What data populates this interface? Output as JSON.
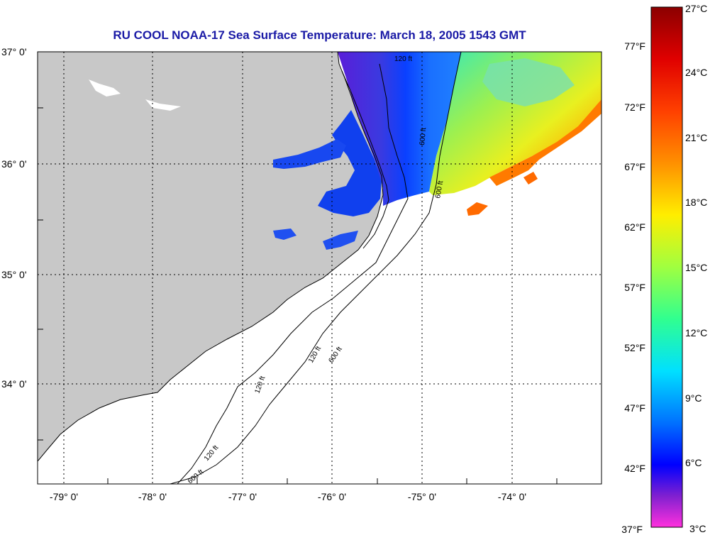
{
  "title": "RU COOL  NOAA-17  Sea Surface Temperature:  March 18, 2005 1543 GMT",
  "map": {
    "lat_labels": [
      "37° 0'",
      "36° 0'",
      "35° 0'",
      "34° 0'"
    ],
    "lon_labels": [
      "-79° 0'",
      "-78° 0'",
      "-77° 0'",
      "-76° 0'",
      "-75° 0'",
      "-74° 0'"
    ],
    "contour_labels": [
      "120 ft",
      "600 ft",
      "120 ft",
      "600 ft",
      "120 ft",
      "600 ft",
      "120 ft",
      "600 ft"
    ],
    "colors": {
      "land": "#c8c8c8",
      "ocean": "#ffffff",
      "title": "#1a1aa6"
    }
  },
  "colorbar": {
    "fahrenheit_labels": [
      "77°F",
      "72°F",
      "67°F",
      "62°F",
      "57°F",
      "52°F",
      "47°F",
      "42°F",
      "37°F"
    ],
    "celsius_labels": [
      "27°C",
      "24°C",
      "21°C",
      "18°C",
      "15°C",
      "12°C",
      "9°C",
      "6°C",
      "3°C"
    ],
    "colors": [
      "#8b0000",
      "#ff2a00",
      "#ff8c00",
      "#ffff00",
      "#4cff70",
      "#00e5ff",
      "#0050ff",
      "#0000ff",
      "#7a1fd6",
      "#ff33dd"
    ]
  }
}
